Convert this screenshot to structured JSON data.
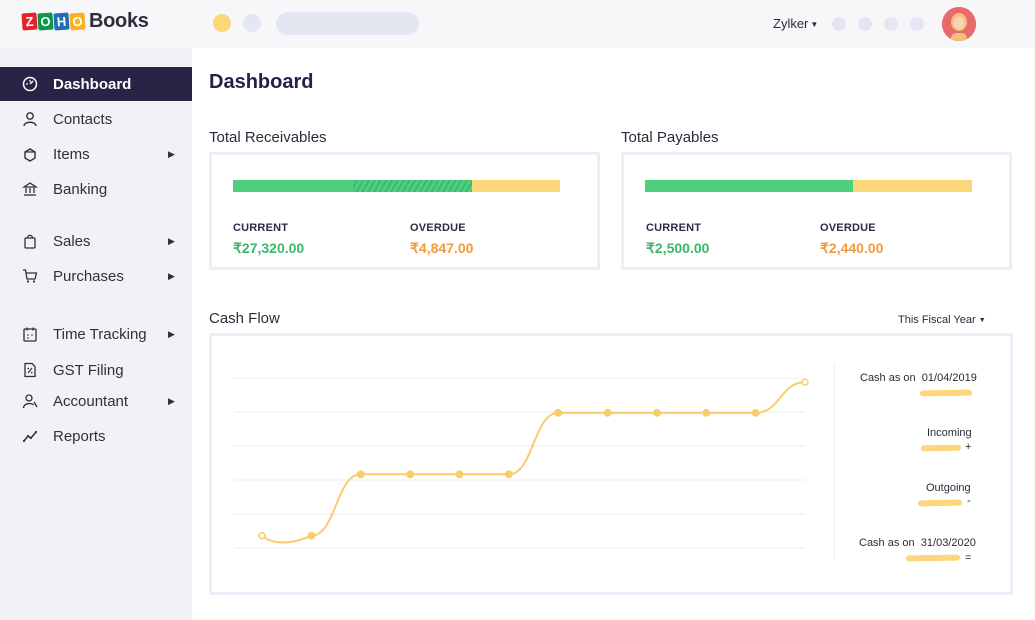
{
  "header": {
    "logo_letters": [
      "Z",
      "O",
      "H",
      "O"
    ],
    "logo_letter_colors": [
      "#e42527",
      "#089949",
      "#226db4",
      "#f9b21d"
    ],
    "logo_text": "Books",
    "org_name": "Zylker",
    "accent_yellow": "#fbd67a"
  },
  "sidebar": {
    "items": [
      {
        "label": "Dashboard",
        "icon": "dashboard-icon",
        "active": true
      },
      {
        "label": "Contacts",
        "icon": "contacts-icon"
      },
      {
        "label": "Items",
        "icon": "items-icon",
        "has_submenu": true
      },
      {
        "label": "Banking",
        "icon": "bank-icon"
      },
      {
        "label": "Sales",
        "icon": "sales-bag-icon",
        "has_submenu": true
      },
      {
        "label": "Purchases",
        "icon": "cart-icon",
        "has_submenu": true
      },
      {
        "label": "Time Tracking",
        "icon": "calendar-icon",
        "has_submenu": true
      },
      {
        "label": "GST Filing",
        "icon": "document-percent-icon"
      },
      {
        "label": "Accountant",
        "icon": "accountant-icon",
        "has_submenu": true
      },
      {
        "label": "Reports",
        "icon": "reports-icon"
      }
    ],
    "active_color": "#272445"
  },
  "main": {
    "title": "Dashboard",
    "receivables": {
      "title": "Total Receivables",
      "current_label": "CURRENT",
      "current_value": "₹27,320.00",
      "overdue_label": "OVERDUE",
      "overdue_value": "₹4,847.00",
      "current_fraction": 0.73
    },
    "payables": {
      "title": "Total Payables",
      "current_label": "CURRENT",
      "current_value": "₹2,500.00",
      "overdue_label": "OVERDUE",
      "overdue_value": "₹2,440.00",
      "current_fraction": 0.63
    },
    "cashflow": {
      "title": "Cash Flow",
      "period": "This Fiscal Year",
      "legend": {
        "start_label": "Cash as on",
        "start_date": "01/04/2019",
        "incoming_label": "Incoming",
        "incoming_sign": "+",
        "outgoing_label": "Outgoing",
        "outgoing_sign": "-",
        "end_label": "Cash as on",
        "end_date": "31/03/2020",
        "end_sign": "="
      }
    }
  },
  "chart_data": {
    "type": "line",
    "x": [
      1,
      2,
      3,
      4,
      5,
      6,
      7,
      8,
      9,
      10,
      11,
      12
    ],
    "series": [
      {
        "values": [
          0.0,
          0.0,
          0.5,
          0.5,
          0.5,
          0.5,
          1.0,
          1.0,
          1.0,
          1.0,
          1.0,
          1.25
        ]
      }
    ],
    "ylim": [
      -0.1,
      1.3
    ],
    "grid": true,
    "color": "#f8cd6a"
  }
}
